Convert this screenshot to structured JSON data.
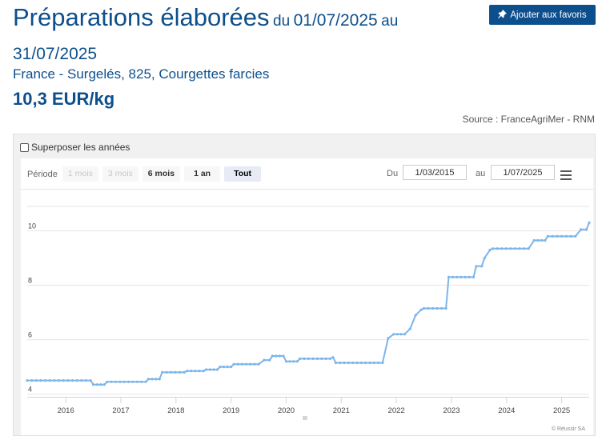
{
  "header": {
    "title": "Préparations élaborées",
    "date_prefix": "du",
    "date_start": "01/07/2025",
    "date_mid": "au",
    "date_end": "31/07/2025",
    "subtitle": "France - Surgelés, 825, Courgettes farcies",
    "price": "10,3 EUR/kg",
    "source": "Source : FranceAgriMer - RNM",
    "favorite_label": "Ajouter aux favoris",
    "favorite_icon": "pin-icon"
  },
  "controls": {
    "overlay_label": "Superposer les années",
    "period_label": "Période",
    "ranges": [
      {
        "label": "1 mois",
        "state": "disabled"
      },
      {
        "label": "3 mois",
        "state": "disabled"
      },
      {
        "label": "6 mois",
        "state": "normal"
      },
      {
        "label": "1 an",
        "state": "normal"
      },
      {
        "label": "Tout",
        "state": "active"
      }
    ],
    "from_label": "Du",
    "from_value": "1/03/2015",
    "to_label": "au",
    "to_value": "1/07/2025",
    "menu_icon": "hamburger-menu-icon"
  },
  "chart_data": {
    "type": "line",
    "x_ticks": [
      "2016",
      "2017",
      "2018",
      "2019",
      "2020",
      "2021",
      "2022",
      "2023",
      "2024",
      "2025"
    ],
    "y_ticks": [
      4,
      6,
      8,
      10
    ],
    "ylim": [
      3.9,
      10.9
    ],
    "x_unit": "year",
    "series": [
      {
        "color": "#7cb5ec",
        "points": [
          [
            2015.3,
            4.5
          ],
          [
            2016.45,
            4.5
          ],
          [
            2016.5,
            4.35
          ],
          [
            2016.7,
            4.35
          ],
          [
            2016.75,
            4.45
          ],
          [
            2017.45,
            4.45
          ],
          [
            2017.5,
            4.55
          ],
          [
            2017.7,
            4.55
          ],
          [
            2017.75,
            4.8
          ],
          [
            2018.15,
            4.8
          ],
          [
            2018.2,
            4.85
          ],
          [
            2018.5,
            4.85
          ],
          [
            2018.55,
            4.9
          ],
          [
            2018.75,
            4.9
          ],
          [
            2018.8,
            5.0
          ],
          [
            2019.0,
            5.0
          ],
          [
            2019.05,
            5.1
          ],
          [
            2019.5,
            5.1
          ],
          [
            2019.6,
            5.25
          ],
          [
            2019.7,
            5.25
          ],
          [
            2019.75,
            5.4
          ],
          [
            2019.95,
            5.4
          ],
          [
            2020.0,
            5.2
          ],
          [
            2020.2,
            5.2
          ],
          [
            2020.25,
            5.3
          ],
          [
            2020.8,
            5.3
          ],
          [
            2020.85,
            5.35
          ],
          [
            2020.9,
            5.15
          ],
          [
            2021.75,
            5.15
          ],
          [
            2021.85,
            6.05
          ],
          [
            2021.95,
            6.2
          ],
          [
            2022.15,
            6.2
          ],
          [
            2022.25,
            6.4
          ],
          [
            2022.35,
            6.9
          ],
          [
            2022.45,
            7.1
          ],
          [
            2022.5,
            7.15
          ],
          [
            2022.9,
            7.15
          ],
          [
            2022.95,
            8.3
          ],
          [
            2023.4,
            8.3
          ],
          [
            2023.45,
            8.7
          ],
          [
            2023.55,
            8.7
          ],
          [
            2023.6,
            9.0
          ],
          [
            2023.7,
            9.3
          ],
          [
            2023.75,
            9.35
          ],
          [
            2024.4,
            9.35
          ],
          [
            2024.5,
            9.65
          ],
          [
            2024.7,
            9.65
          ],
          [
            2024.75,
            9.8
          ],
          [
            2025.25,
            9.8
          ],
          [
            2025.35,
            10.05
          ],
          [
            2025.45,
            10.05
          ],
          [
            2025.5,
            10.3
          ]
        ]
      }
    ],
    "credits": "© Réussir SA",
    "grid": true,
    "navigator_handle": "III"
  }
}
